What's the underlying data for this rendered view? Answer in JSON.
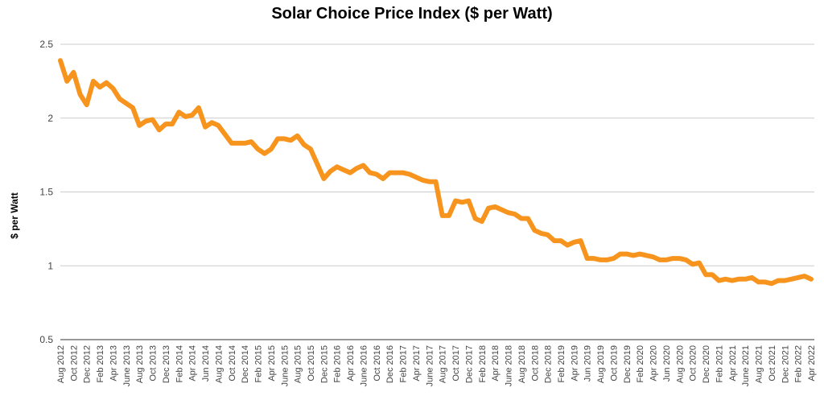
{
  "chart_data": {
    "type": "line",
    "title": "Solar Choice Price Index ($ per Watt)",
    "xlabel": "",
    "ylabel": "$ per Watt",
    "ylim": [
      0.5,
      2.5
    ],
    "yticks": [
      "0.5",
      "1",
      "1.5",
      "2",
      "2.5"
    ],
    "grid": true,
    "legend": "none",
    "line_color": "#f7941d",
    "x_tick_labels": [
      "Aug 2012",
      "Oct 2012",
      "Dec 2012",
      "Feb 2013",
      "Apr 2013",
      "June 2013",
      "Aug 2013",
      "Oct 2013",
      "Dec 2013",
      "Feb 2014",
      "Apr 2014",
      "Jun 2014",
      "Aug 2014",
      "Oct 2014",
      "Dec 2014",
      "Feb 2015",
      "Apr 2015",
      "June 2015",
      "Aug 2015",
      "Oct 2015",
      "Dec 2015",
      "Feb 2016",
      "Apr 2016",
      "June 2016",
      "Oct 2016",
      "Dec 2016",
      "Feb 2017",
      "Apr 2017",
      "June 2017",
      "Aug 2017",
      "Oct 2017",
      "Dec 2017",
      "Feb 2018",
      "Apr 2018",
      "June 2018",
      "Aug 2018",
      "Oct 2018",
      "Dec 2018",
      "Feb 2019",
      "Apr 2019",
      "Jun 2019",
      "Aug 2019",
      "Oct 2019",
      "Dec 2019",
      "Feb 2020",
      "Apr 2020",
      "Jun 2020",
      "Aug 2020",
      "Oct 2020",
      "Dec 2020",
      "Feb 2021",
      "Apr 2021",
      "June 2021",
      "Aug 2021",
      "Oct 2021",
      "Dec 2021",
      "Feb 2022",
      "Apr 2022"
    ],
    "values": [
      2.39,
      2.25,
      2.31,
      2.16,
      2.09,
      2.25,
      2.21,
      2.24,
      2.2,
      2.13,
      2.1,
      2.07,
      1.95,
      1.98,
      1.99,
      1.92,
      1.96,
      1.96,
      2.04,
      2.01,
      2.02,
      2.07,
      1.94,
      1.97,
      1.95,
      1.89,
      1.83,
      1.83,
      1.83,
      1.84,
      1.79,
      1.76,
      1.79,
      1.86,
      1.86,
      1.85,
      1.88,
      1.82,
      1.79,
      1.69,
      1.59,
      1.64,
      1.67,
      1.65,
      1.63,
      1.66,
      1.68,
      1.63,
      1.62,
      1.59,
      1.63,
      1.63,
      1.63,
      1.62,
      1.6,
      1.58,
      1.57,
      1.57,
      1.34,
      1.34,
      1.44,
      1.43,
      1.44,
      1.32,
      1.3,
      1.39,
      1.4,
      1.38,
      1.36,
      1.35,
      1.32,
      1.32,
      1.24,
      1.22,
      1.21,
      1.17,
      1.17,
      1.14,
      1.16,
      1.17,
      1.05,
      1.05,
      1.04,
      1.04,
      1.05,
      1.08,
      1.08,
      1.07,
      1.08,
      1.07,
      1.06,
      1.04,
      1.04,
      1.05,
      1.05,
      1.04,
      1.01,
      1.02,
      0.94,
      0.94,
      0.9,
      0.91,
      0.9,
      0.91,
      0.91,
      0.92,
      0.89,
      0.89,
      0.88,
      0.9,
      0.9,
      0.91,
      0.92,
      0.93,
      0.91
    ]
  }
}
